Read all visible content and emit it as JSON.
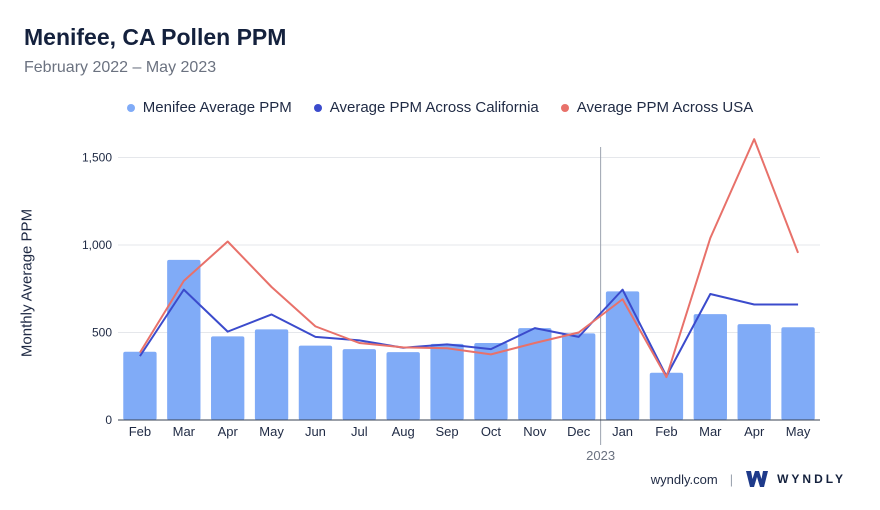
{
  "title": "Menifee, CA Pollen PPM",
  "subtitle": "February 2022 – May 2023",
  "colors": {
    "bars": "#80abf7",
    "california": "#3b4bcc",
    "usa": "#e8716a",
    "grid": "#e5e7eb"
  },
  "footer": {
    "site": "wyndly.com",
    "brand": "WYNDLY"
  },
  "chart_data": {
    "type": "bar",
    "ylabel": "Monthly Average PPM",
    "ylim": [
      0,
      1600
    ],
    "yticks": [
      0,
      500,
      1000,
      1500
    ],
    "ytick_labels": [
      "0",
      "500",
      "1,000",
      "1,500"
    ],
    "categories": [
      "Feb",
      "Mar",
      "Apr",
      "May",
      "Jun",
      "Jul",
      "Aug",
      "Sep",
      "Oct",
      "Nov",
      "Dec",
      "Jan",
      "Feb",
      "Mar",
      "Apr",
      "May"
    ],
    "year_marker": {
      "label": "2023",
      "before_index": 11
    },
    "grid": true,
    "legend_position": "top",
    "series": [
      {
        "name": "Menifee Average PPM",
        "kind": "bar",
        "values": [
          390,
          915,
          478,
          518,
          425,
          405,
          388,
          435,
          440,
          525,
          495,
          735,
          270,
          605,
          548,
          530
        ]
      },
      {
        "name": "Average PPM Across California",
        "kind": "line",
        "values": [
          365,
          745,
          505,
          603,
          475,
          455,
          413,
          432,
          405,
          525,
          475,
          745,
          250,
          720,
          660,
          660
        ]
      },
      {
        "name": "Average PPM Across USA",
        "kind": "line",
        "values": [
          385,
          795,
          1020,
          760,
          535,
          440,
          415,
          410,
          375,
          440,
          500,
          690,
          245,
          1040,
          1605,
          955
        ]
      }
    ]
  }
}
